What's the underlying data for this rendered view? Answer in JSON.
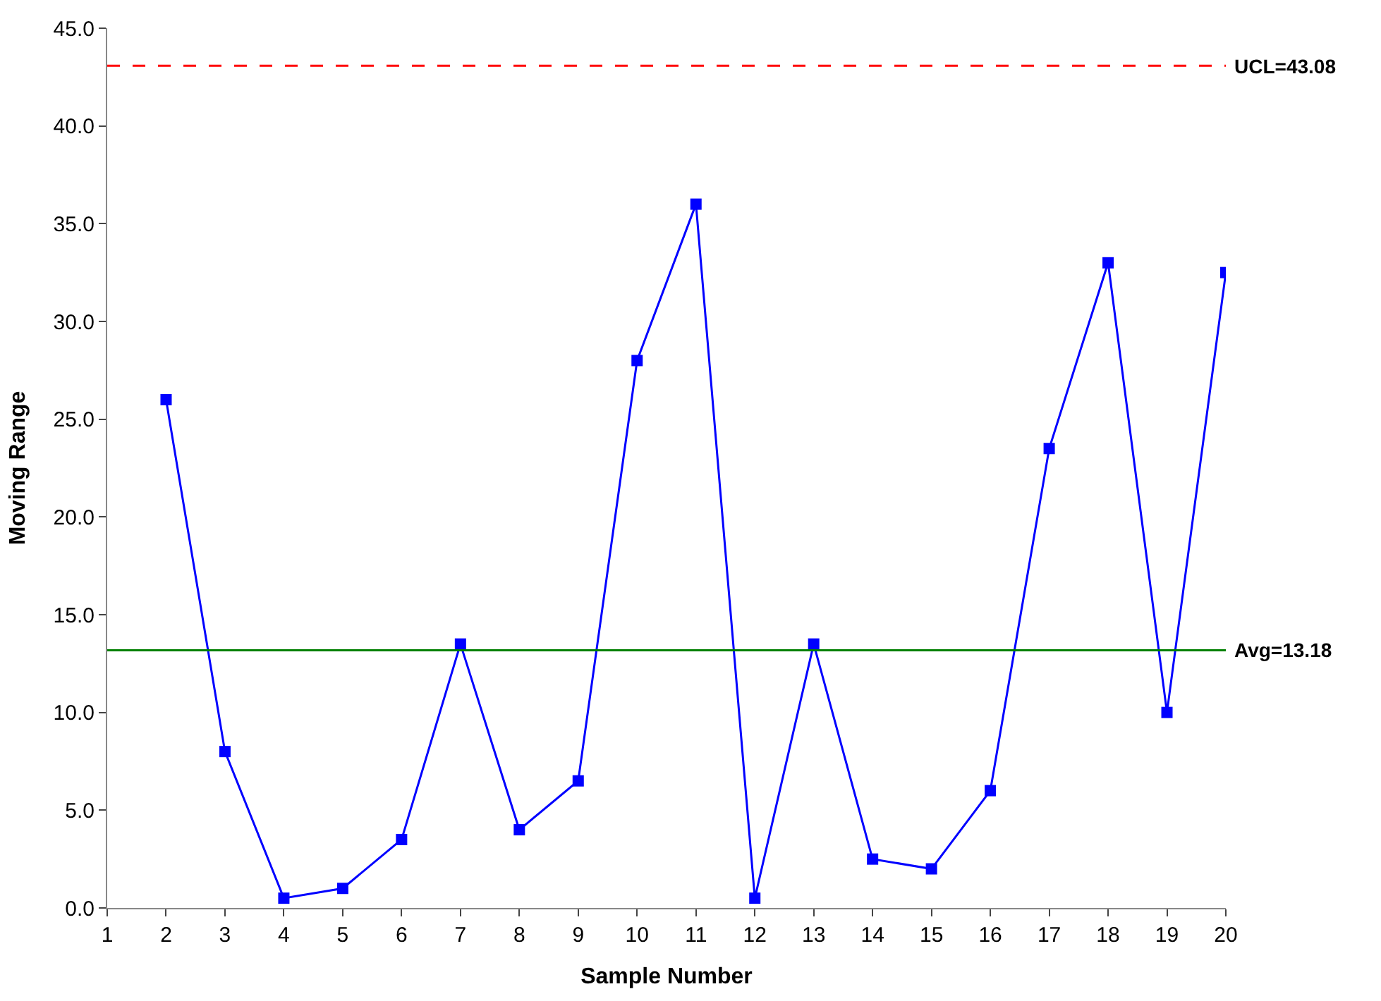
{
  "chart_data": {
    "type": "line",
    "xlabel": "Sample Number",
    "ylabel": "Moving Range",
    "x": [
      2,
      3,
      4,
      5,
      6,
      7,
      8,
      9,
      10,
      11,
      12,
      13,
      14,
      15,
      16,
      17,
      18,
      19,
      20
    ],
    "series": [
      {
        "color": "#0000ff",
        "values": [
          26,
          8,
          0.5,
          1,
          3.5,
          13.5,
          4,
          6.5,
          28,
          36,
          0.5,
          13.5,
          2.5,
          2,
          6,
          23.5,
          33,
          10,
          32.5
        ]
      }
    ],
    "xlim": [
      1,
      20
    ],
    "xticks": [
      1,
      2,
      3,
      4,
      5,
      6,
      7,
      8,
      9,
      10,
      11,
      12,
      13,
      14,
      15,
      16,
      17,
      18,
      19,
      20
    ],
    "ylim": [
      0,
      45
    ],
    "yticks": [
      {
        "value": 0,
        "label": "0.0"
      },
      {
        "value": 5,
        "label": "5.0"
      },
      {
        "value": 10,
        "label": "10.0"
      },
      {
        "value": 15,
        "label": "15.0"
      },
      {
        "value": 20,
        "label": "20.0"
      },
      {
        "value": 25,
        "label": "25.0"
      },
      {
        "value": 30,
        "label": "30.0"
      },
      {
        "value": 35,
        "label": "35.0"
      },
      {
        "value": 40,
        "label": "40.0"
      },
      {
        "value": 45,
        "label": "45.0"
      }
    ],
    "ref_lines": [
      {
        "axis": "y",
        "value": 43.08,
        "label": "UCL=43.08",
        "color": "#ff0000",
        "line_style": "dashed"
      },
      {
        "axis": "y",
        "value": 13.18,
        "label": "Avg=13.18",
        "color": "#008000",
        "line_style": "solid"
      }
    ],
    "marker": "square",
    "line_style": "solid"
  }
}
